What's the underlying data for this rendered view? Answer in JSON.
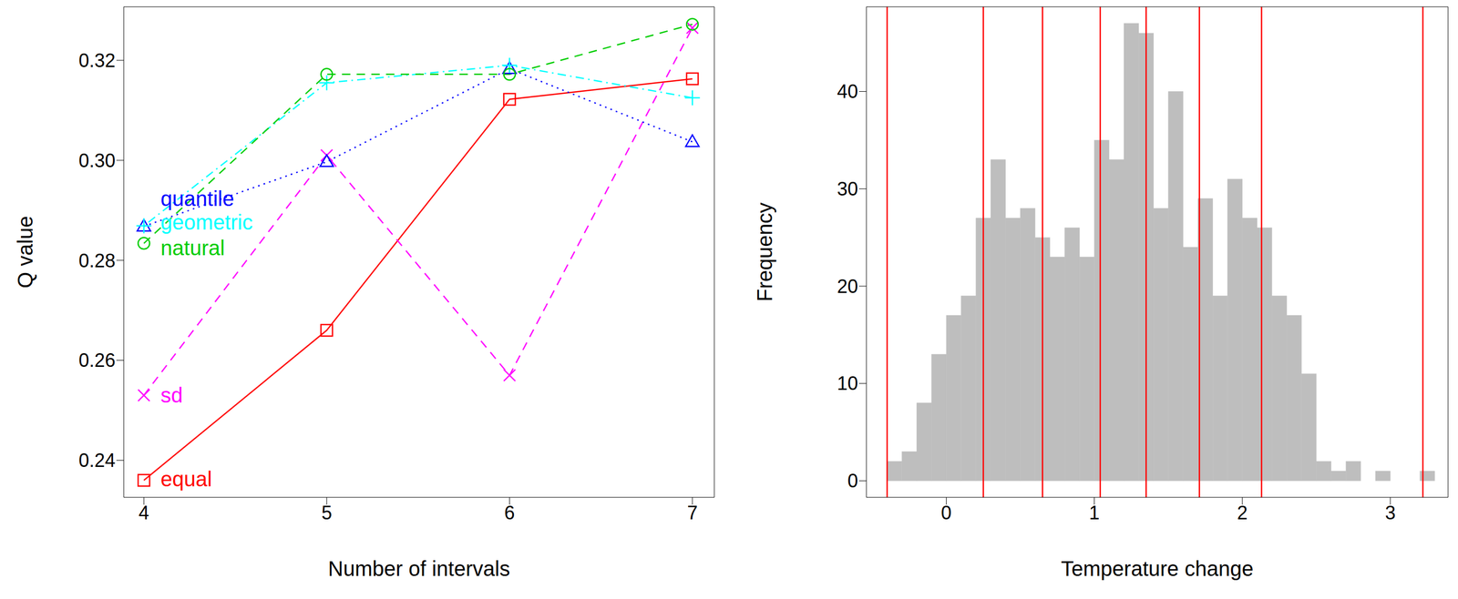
{
  "chart_data": [
    {
      "type": "line",
      "xlabel": "Number of intervals",
      "ylabel": "Q value",
      "x": [
        4,
        5,
        6,
        7
      ],
      "xlim": [
        3.89,
        7.12
      ],
      "xticks": [
        4,
        5,
        6,
        7
      ],
      "ylim": [
        0.2326,
        0.3307
      ],
      "yticks": [
        0.24,
        0.26,
        0.28,
        {
          "value": 0.3,
          "label": "0.30"
        },
        0.32
      ],
      "series": [
        {
          "name": "equal",
          "color": "#ff0000",
          "marker": "square",
          "line_style": "solid",
          "values": [
            0.236,
            0.266,
            0.3122,
            0.3163
          ]
        },
        {
          "name": "sd",
          "color": "#ff00ff",
          "marker": "x",
          "line_style": "dashed",
          "values": [
            0.253,
            0.301,
            0.257,
            0.3265
          ]
        },
        {
          "name": "quantile",
          "color": "#0000ff",
          "marker": "triangle",
          "line_style": "dotted",
          "values": [
            0.2868,
            0.2997,
            0.3183,
            0.3037
          ]
        },
        {
          "name": "geometric",
          "color": "#00ffff",
          "marker": "plus",
          "line_style": "dotdash",
          "values": [
            0.2869,
            0.3155,
            0.319,
            0.3125
          ]
        },
        {
          "name": "natural",
          "color": "#00cd00",
          "marker": "circle",
          "line_style": "dashed",
          "values": [
            0.2834,
            0.3172,
            0.3172,
            0.3272
          ]
        }
      ]
    },
    {
      "type": "histogram",
      "xlabel": "Temperature change",
      "ylabel": "Frequency",
      "color": "#bebebe",
      "bins": [
        -0.4,
        -0.3,
        -0.2,
        -0.1,
        0.0,
        0.1,
        0.2,
        0.3,
        0.4,
        0.5,
        0.6,
        0.7,
        0.8,
        0.9,
        1.0,
        1.1,
        1.2,
        1.3,
        1.4,
        1.5,
        1.6,
        1.7,
        1.8,
        1.9,
        2.0,
        2.1,
        2.2,
        2.3,
        2.4,
        2.5,
        2.6,
        2.7,
        2.8,
        2.9,
        3.0,
        3.1,
        3.2,
        3.3
      ],
      "counts": [
        2,
        3,
        8,
        13,
        17,
        19,
        27,
        33,
        27,
        28,
        25,
        23,
        26,
        23,
        35,
        33,
        47,
        46,
        28,
        40,
        24,
        29,
        19,
        31,
        27,
        26,
        19,
        17,
        11,
        2,
        1,
        2,
        0,
        1,
        0,
        0,
        1
      ],
      "xlim": [
        -0.54,
        3.39
      ],
      "xticks": [
        0,
        1,
        2,
        3
      ],
      "ylim": [
        -1.7,
        48.7
      ],
      "yticks": [
        0,
        10,
        20,
        30,
        40
      ],
      "breaks": {
        "values": [
          -0.4,
          0.25,
          0.65,
          1.04,
          1.35,
          1.71,
          2.13,
          3.22
        ],
        "color": "#ff0000"
      }
    }
  ]
}
